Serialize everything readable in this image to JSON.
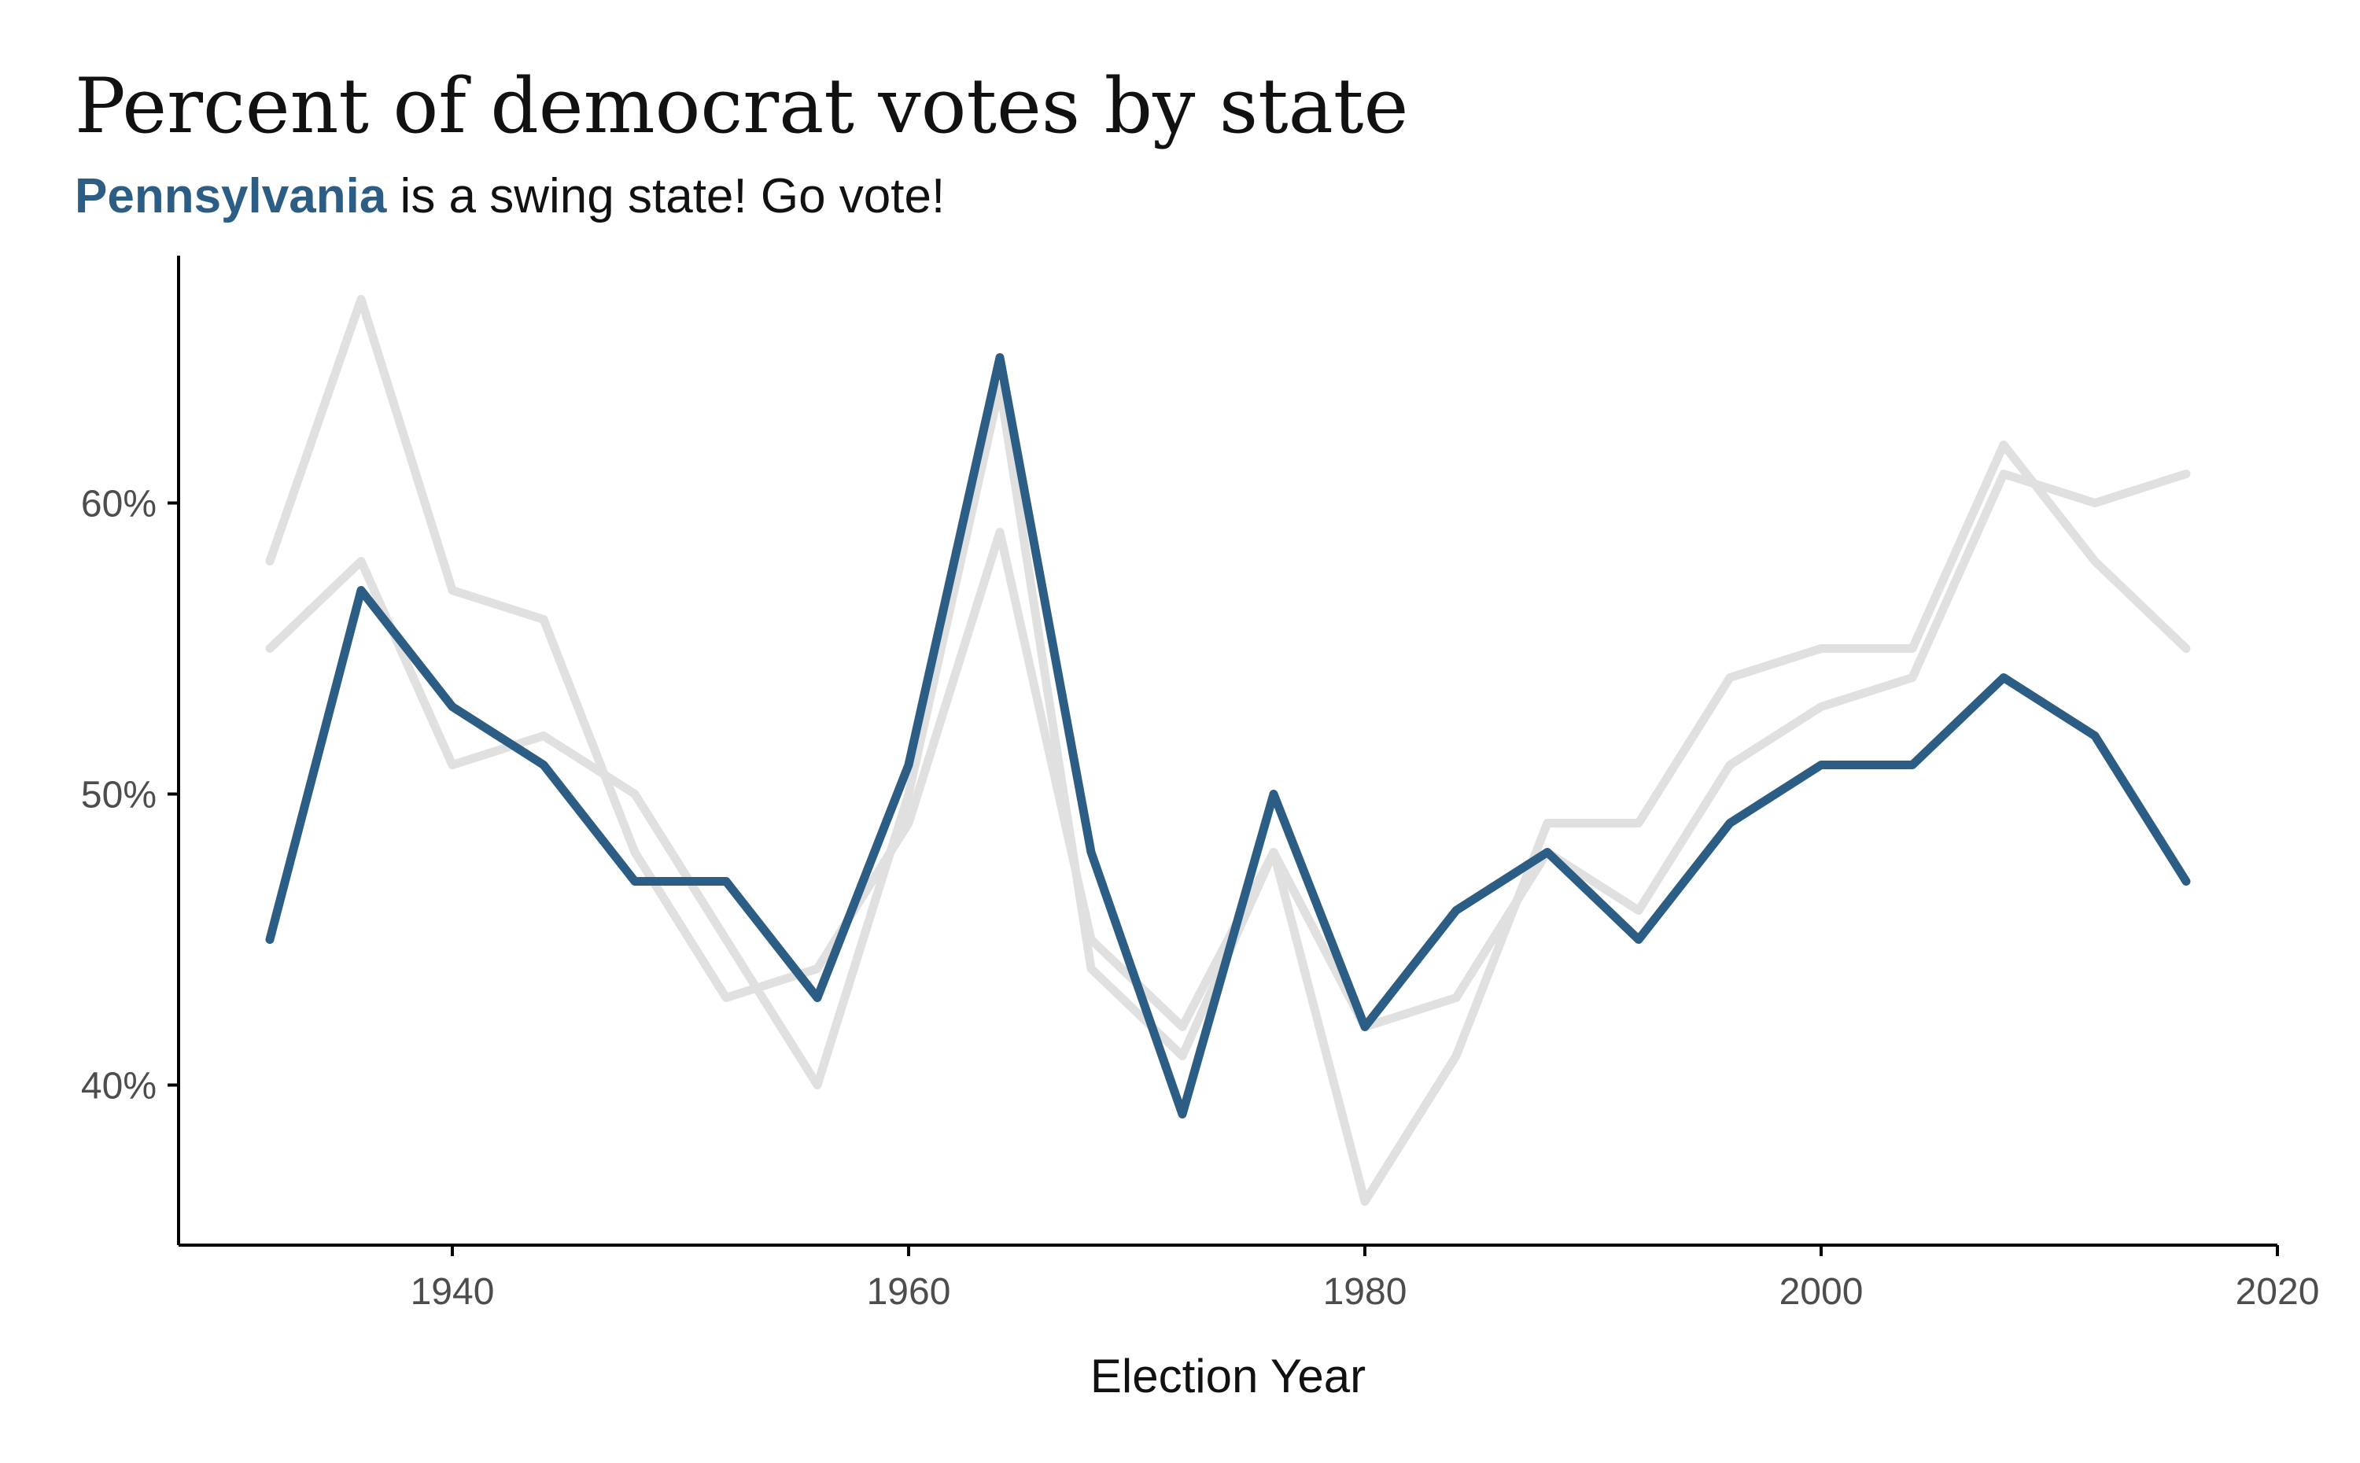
{
  "chart_data": {
    "type": "line",
    "title": "Percent of democrat votes by state",
    "subtitle_highlight": "Pennsylvania",
    "subtitle_rest": " is a swing state! Go vote!",
    "xlabel": "Election Year",
    "ylabel": "",
    "x": [
      1932,
      1936,
      1940,
      1944,
      1948,
      1952,
      1956,
      1960,
      1964,
      1968,
      1972,
      1976,
      1980,
      1984,
      1988,
      1992,
      1996,
      2000,
      2004,
      2008,
      2012,
      2016
    ],
    "xlim": [
      1928,
      2020
    ],
    "ylim": [
      34.5,
      68.5
    ],
    "x_ticks": [
      1940,
      1960,
      1980,
      2000,
      2020
    ],
    "x_tick_labels": [
      "1940",
      "1960",
      "1980",
      "2000",
      "2020"
    ],
    "y_ticks": [
      40,
      50,
      60
    ],
    "y_tick_labels": [
      "40%",
      "50%",
      "60%"
    ],
    "grid": false,
    "legend": "none",
    "series": [
      {
        "highlighted": false,
        "color": "#e0e0e0",
        "values": [
          58,
          67,
          57,
          56,
          48,
          43,
          44,
          49,
          59,
          45,
          42,
          48,
          42,
          43,
          48,
          46,
          51,
          53,
          54,
          61,
          60,
          61
        ]
      },
      {
        "highlighted": false,
        "color": "#e0e0e0",
        "values": [
          55,
          58,
          51,
          52,
          50,
          45,
          40,
          50,
          64,
          44,
          41,
          48,
          36,
          41,
          49,
          49,
          54,
          55,
          55,
          62,
          58,
          55
        ]
      },
      {
        "name": "Pennsylvania",
        "highlighted": true,
        "color": "#2c5d85",
        "values": [
          45,
          57,
          53,
          51,
          47,
          47,
          43,
          51,
          65,
          48,
          39,
          50,
          42,
          46,
          48,
          45,
          49,
          51,
          51,
          54,
          52,
          47
        ]
      }
    ]
  }
}
